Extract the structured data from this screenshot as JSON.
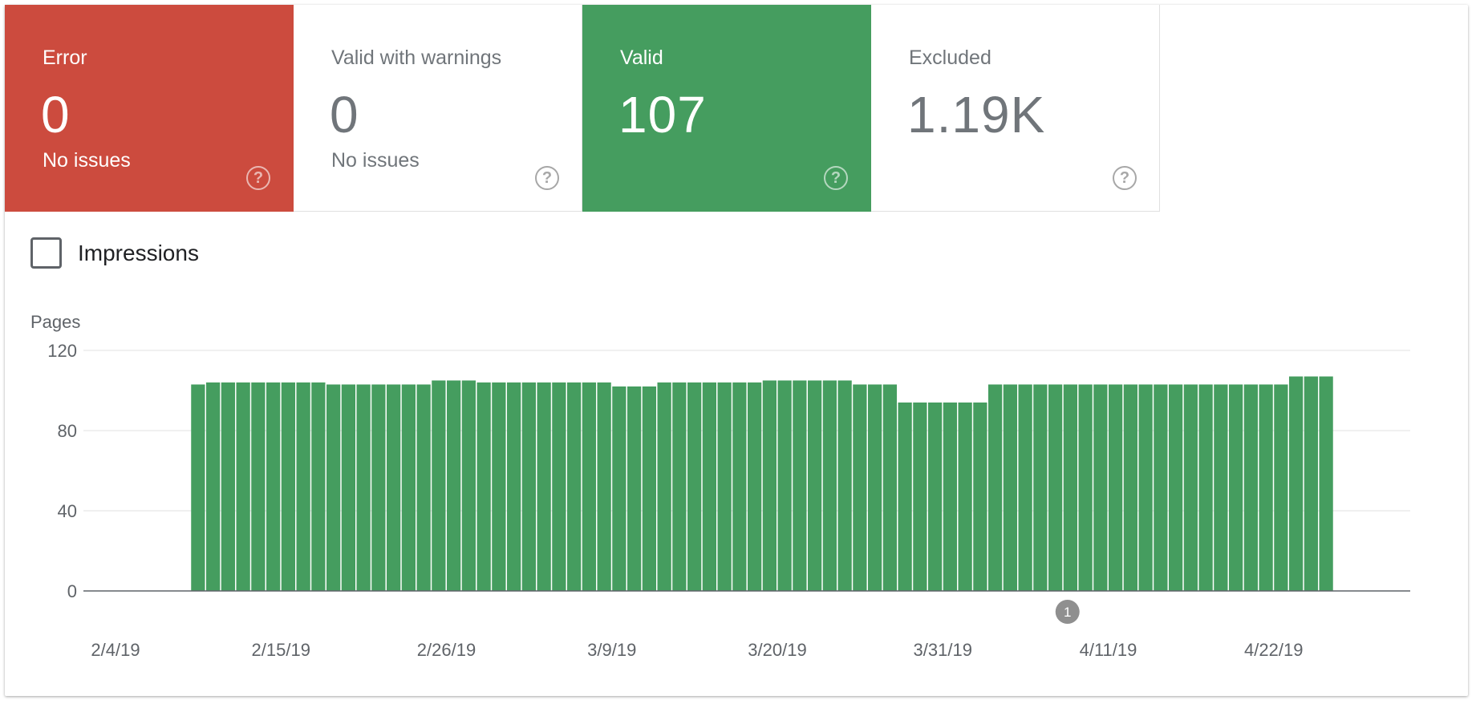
{
  "tiles": [
    {
      "key": "error",
      "label": "Error",
      "value": "0",
      "sub": "No issues"
    },
    {
      "key": "warnings",
      "label": "Valid with warnings",
      "value": "0",
      "sub": "No issues"
    },
    {
      "key": "valid",
      "label": "Valid",
      "value": "107",
      "sub": ""
    },
    {
      "key": "excluded",
      "label": "Excluded",
      "value": "1.19K",
      "sub": ""
    }
  ],
  "help_glyph": "?",
  "impressions": {
    "label": "Impressions",
    "checked": false
  },
  "colors": {
    "error": "#cc4b3e",
    "valid": "#459d5f",
    "gridline": "#e0e0e0"
  },
  "chart_data": {
    "type": "bar",
    "ylabel": "Pages",
    "ylim": [
      0,
      120
    ],
    "yticks": [
      0,
      40,
      80,
      120
    ],
    "xtick_labels": [
      "2/4/19",
      "2/15/19",
      "2/26/19",
      "3/9/19",
      "3/20/19",
      "3/31/19",
      "4/11/19",
      "4/22/19"
    ],
    "start_date": "2/4/19",
    "first_bar_day": 7,
    "values": [
      103,
      104,
      104,
      104,
      104,
      104,
      104,
      104,
      104,
      103,
      103,
      103,
      103,
      103,
      103,
      103,
      105,
      105,
      105,
      104,
      104,
      104,
      104,
      104,
      104,
      104,
      104,
      104,
      102,
      102,
      102,
      104,
      104,
      104,
      104,
      104,
      104,
      104,
      105,
      105,
      105,
      105,
      105,
      105,
      103,
      103,
      103,
      94,
      94,
      94,
      94,
      94,
      94,
      103,
      103,
      103,
      103,
      103,
      103,
      103,
      103,
      103,
      103,
      103,
      103,
      103,
      103,
      103,
      103,
      103,
      103,
      103,
      103,
      107,
      107,
      107
    ],
    "annotation": {
      "label": "1",
      "day": 65
    }
  }
}
